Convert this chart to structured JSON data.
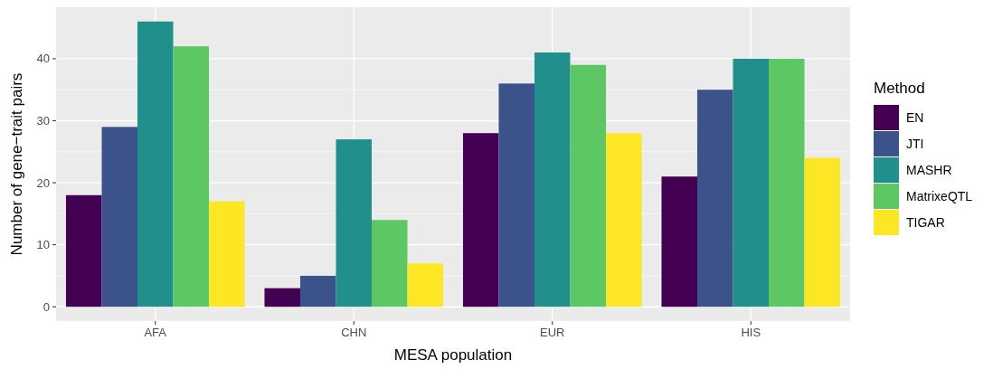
{
  "chart_data": {
    "type": "bar",
    "xlabel": "MESA population",
    "ylabel": "Number of gene−trait pairs",
    "legend_title": "Method",
    "categories": [
      "AFA",
      "CHN",
      "EUR",
      "HIS"
    ],
    "series": [
      {
        "name": "EN",
        "color": "#440154",
        "values": [
          18,
          3,
          28,
          21
        ]
      },
      {
        "name": "JTI",
        "color": "#3b528b",
        "values": [
          29,
          5,
          36,
          35
        ]
      },
      {
        "name": "MASHR",
        "color": "#21908c",
        "values": [
          46,
          27,
          41,
          40
        ]
      },
      {
        "name": "MatrixeQTL",
        "color": "#5dc863",
        "values": [
          42,
          14,
          39,
          40
        ]
      },
      {
        "name": "TIGAR",
        "color": "#fde725",
        "values": [
          17,
          7,
          28,
          24
        ]
      }
    ],
    "ylim": [
      -2.3,
      48.3
    ],
    "yticks": [
      0,
      10,
      20,
      30,
      40
    ],
    "grid": true,
    "legend": "right"
  }
}
